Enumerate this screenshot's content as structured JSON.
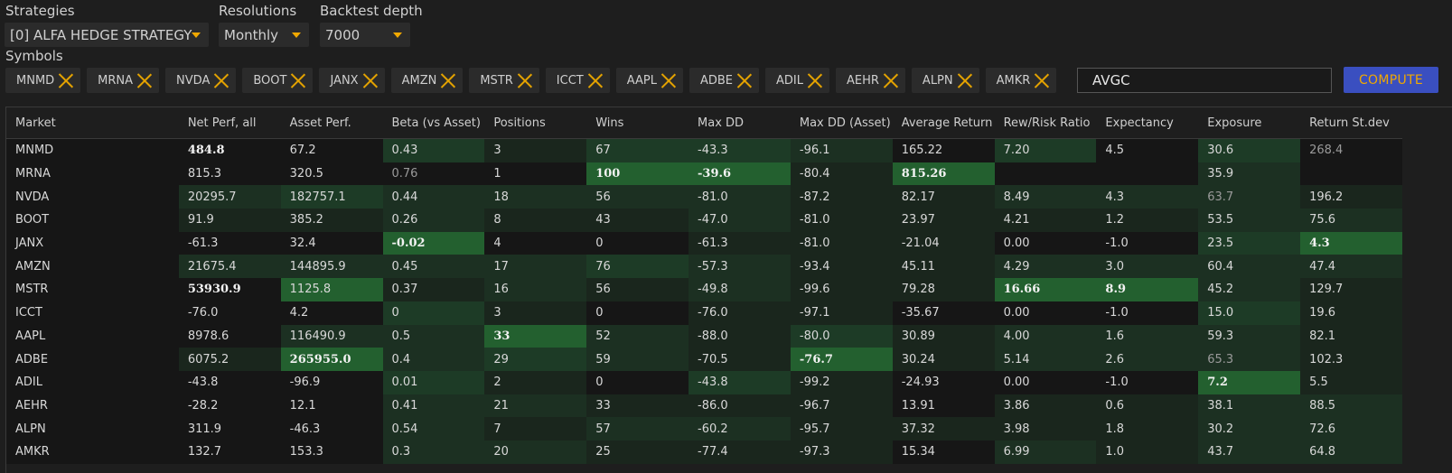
{
  "filters": {
    "strategies_label": "Strategies",
    "strategies_value": "[0] ALFA HEDGE STRATEGY",
    "resolutions_label": "Resolutions",
    "resolutions_value": "Monthly",
    "depth_label": "Backtest depth",
    "depth_value": "7000",
    "symbols_label": "Symbols"
  },
  "symbols": [
    "MNMD",
    "MRNA",
    "NVDA",
    "BOOT",
    "JANX",
    "AMZN",
    "MSTR",
    "ICCT",
    "AAPL",
    "ADBE",
    "ADIL",
    "AEHR",
    "ALPN",
    "AMKR"
  ],
  "symbol_input_value": "AVGC",
  "compute_label": "COMPUTE",
  "columns": [
    "Market",
    "Net Perf, all",
    "Asset Perf.",
    "Beta (vs Asset)",
    "Positions",
    "Wins",
    "Max DD",
    "Max DD (Asset)",
    "Average Return",
    "Rew/Risk Ratio",
    "Expectancy",
    "Exposure",
    "Return St.dev"
  ],
  "colors": {
    "background": "#1e1e1e",
    "accent": "#f0a800",
    "compute_button": "#3a4fc0",
    "heat_shades": [
      "#161616",
      "#1a261d",
      "#1c3022",
      "#1d3b26",
      "#1f4a2b",
      "#23602f"
    ]
  },
  "rows": [
    [
      "MNMD",
      "484.8",
      "67.2",
      "0.43",
      "3",
      "67",
      "-43.3",
      "-96.1",
      "165.22",
      "7.20",
      "4.5",
      "30.6",
      "268.4"
    ],
    [
      "MRNA",
      "815.3",
      "320.5",
      "0.76",
      "1",
      "100",
      "-39.6",
      "-80.4",
      "815.26",
      "",
      "",
      "35.9",
      ""
    ],
    [
      "NVDA",
      "20295.7",
      "182757.1",
      "0.44",
      "18",
      "56",
      "-81.0",
      "-87.2",
      "82.17",
      "8.49",
      "4.3",
      "63.7",
      "196.2"
    ],
    [
      "BOOT",
      "91.9",
      "385.2",
      "0.26",
      "8",
      "43",
      "-47.0",
      "-81.0",
      "23.97",
      "4.21",
      "1.2",
      "53.5",
      "75.6"
    ],
    [
      "JANX",
      "-61.3",
      "32.4",
      "-0.02",
      "4",
      "0",
      "-61.3",
      "-81.0",
      "-21.04",
      "0.00",
      "-1.0",
      "23.5",
      "4.3"
    ],
    [
      "AMZN",
      "21675.4",
      "144895.9",
      "0.45",
      "17",
      "76",
      "-57.3",
      "-93.4",
      "45.11",
      "4.29",
      "3.0",
      "60.4",
      "47.4"
    ],
    [
      "MSTR",
      "53930.9",
      "1125.8",
      "0.37",
      "16",
      "56",
      "-49.8",
      "-99.6",
      "79.28",
      "16.66",
      "8.9",
      "45.2",
      "129.7"
    ],
    [
      "ICCT",
      "-76.0",
      "4.2",
      "0",
      "3",
      "0",
      "-76.0",
      "-97.1",
      "-35.67",
      "0.00",
      "-1.0",
      "15.0",
      "19.6"
    ],
    [
      "AAPL",
      "8978.6",
      "116490.9",
      "0.5",
      "33",
      "52",
      "-88.0",
      "-80.0",
      "30.89",
      "4.00",
      "1.6",
      "59.3",
      "82.1"
    ],
    [
      "ADBE",
      "6075.2",
      "265955.0",
      "0.4",
      "29",
      "59",
      "-70.5",
      "-76.7",
      "30.24",
      "5.14",
      "2.6",
      "65.3",
      "102.3"
    ],
    [
      "ADIL",
      "-43.8",
      "-96.9",
      "0.01",
      "2",
      "0",
      "-43.8",
      "-99.2",
      "-24.93",
      "0.00",
      "-1.0",
      "7.2",
      "5.5"
    ],
    [
      "AEHR",
      "-28.2",
      "12.1",
      "0.41",
      "21",
      "33",
      "-86.0",
      "-96.7",
      "13.91",
      "3.86",
      "0.6",
      "38.1",
      "88.5"
    ],
    [
      "ALPN",
      "311.9",
      "-46.3",
      "0.54",
      "7",
      "57",
      "-60.2",
      "-95.7",
      "37.32",
      "3.98",
      "1.8",
      "30.2",
      "72.6"
    ],
    [
      "AMKR",
      "132.7",
      "153.3",
      "0.3",
      "20",
      "25",
      "-77.4",
      "-97.3",
      "15.34",
      "6.99",
      "1.0",
      "43.7",
      "64.8"
    ]
  ],
  "heat": [
    [
      0,
      0,
      0,
      3,
      1,
      3,
      3,
      2,
      0,
      3,
      0,
      3,
      0
    ],
    [
      0,
      0,
      0,
      0,
      0,
      5,
      5,
      1,
      5,
      0,
      0,
      2,
      0
    ],
    [
      0,
      2,
      3,
      2,
      2,
      2,
      2,
      1,
      1,
      2,
      2,
      2,
      1
    ],
    [
      0,
      1,
      1,
      2,
      1,
      1,
      2,
      1,
      1,
      1,
      1,
      2,
      2
    ],
    [
      0,
      0,
      0,
      5,
      0,
      0,
      1,
      1,
      1,
      0,
      0,
      3,
      5
    ],
    [
      0,
      2,
      2,
      2,
      2,
      3,
      2,
      1,
      1,
      2,
      2,
      2,
      2
    ],
    [
      0,
      0,
      5,
      1,
      2,
      1,
      2,
      1,
      1,
      5,
      5,
      2,
      1
    ],
    [
      0,
      0,
      0,
      3,
      1,
      0,
      1,
      1,
      0,
      0,
      0,
      3,
      1
    ],
    [
      0,
      0,
      2,
      2,
      5,
      2,
      1,
      3,
      1,
      2,
      2,
      2,
      1
    ],
    [
      0,
      1,
      5,
      2,
      3,
      2,
      1,
      5,
      1,
      2,
      2,
      2,
      1
    ],
    [
      0,
      0,
      0,
      3,
      1,
      0,
      3,
      1,
      0,
      0,
      0,
      5,
      1
    ],
    [
      0,
      0,
      0,
      2,
      2,
      1,
      1,
      1,
      0,
      1,
      1,
      2,
      2
    ],
    [
      0,
      0,
      0,
      2,
      1,
      2,
      2,
      1,
      1,
      1,
      1,
      2,
      2
    ],
    [
      0,
      0,
      0,
      2,
      2,
      1,
      1,
      1,
      0,
      2,
      1,
      2,
      2
    ]
  ],
  "emphasis": [
    [
      0,
      1
    ],
    [
      1,
      5
    ],
    [
      1,
      6
    ],
    [
      1,
      8
    ],
    [
      4,
      3
    ],
    [
      4,
      12
    ],
    [
      6,
      1
    ],
    [
      6,
      9
    ],
    [
      6,
      10
    ],
    [
      8,
      4
    ],
    [
      9,
      2
    ],
    [
      9,
      7
    ],
    [
      10,
      11
    ]
  ],
  "muted": [
    [
      0,
      12
    ],
    [
      1,
      3
    ],
    [
      2,
      11
    ],
    [
      9,
      11
    ]
  ]
}
